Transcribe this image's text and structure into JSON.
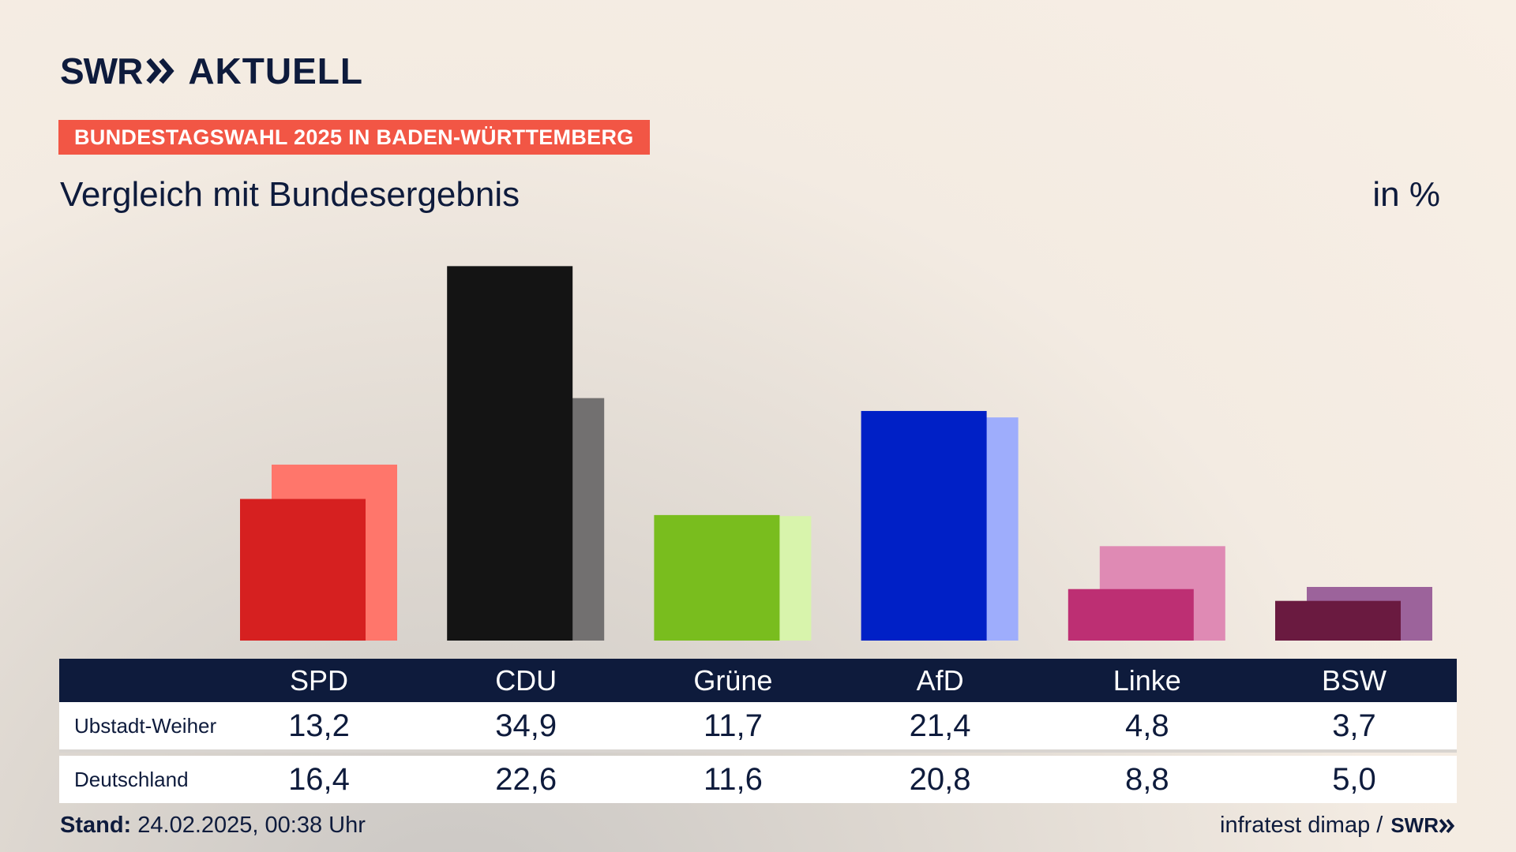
{
  "header": {
    "logo_text": "SWR",
    "logo_suffix": "AKTUELL",
    "banner": "BUNDESTAGSWAHL 2025 IN BADEN-WÜRTTEMBERG",
    "subtitle": "Vergleich mit Bundesergebnis",
    "unit": "in %"
  },
  "chart_data": {
    "type": "bar",
    "categories": [
      "SPD",
      "CDU",
      "Grüne",
      "AfD",
      "Linke",
      "BSW"
    ],
    "series": [
      {
        "name": "Ubstadt-Weiher",
        "values": [
          13.2,
          34.9,
          11.7,
          21.4,
          4.8,
          3.7
        ]
      },
      {
        "name": "Deutschland",
        "values": [
          16.4,
          22.6,
          11.6,
          20.8,
          8.8,
          5.0
        ]
      }
    ],
    "display_values": {
      "Ubstadt-Weiher": [
        "13,2",
        "34,9",
        "11,7",
        "21,4",
        "4,8",
        "3,7"
      ],
      "Deutschland": [
        "16,4",
        "22,6",
        "11,6",
        "20,8",
        "8,8",
        "5,0"
      ]
    },
    "colors_primary": [
      "#d62020",
      "#141414",
      "#79bd1e",
      "#0020c6",
      "#bd2f73",
      "#6a1a40"
    ],
    "colors_secondary": [
      "#ff766b",
      "#727070",
      "#d8f4ac",
      "#9eadfc",
      "#df8ab4",
      "#9c639b"
    ],
    "ylim": [
      0,
      35
    ]
  },
  "footer": {
    "stand_label": "Stand:",
    "stand_value": "24.02.2025, 00:38 Uhr",
    "source": "infratest dimap /",
    "source_logo": "SWR"
  }
}
